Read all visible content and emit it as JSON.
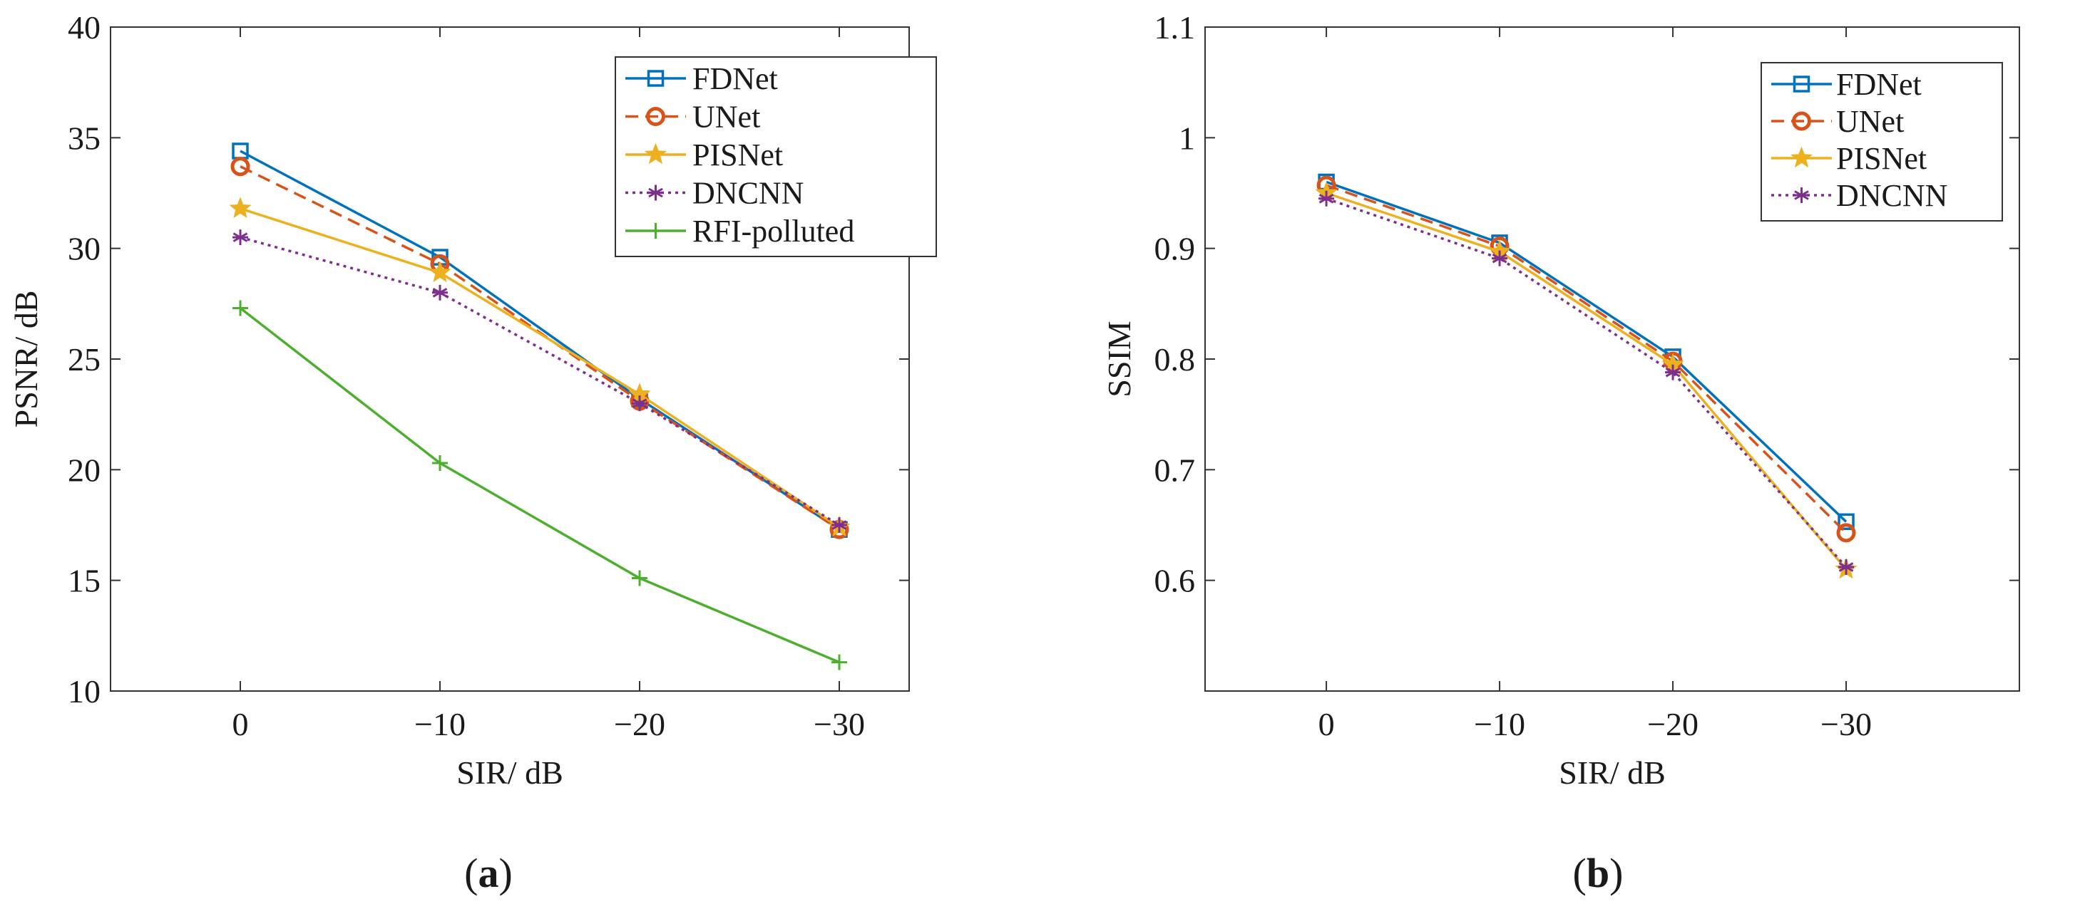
{
  "chart_data": [
    {
      "type": "line",
      "panel_label_open": "(",
      "panel_label_letter": "a",
      "panel_label_close": ")",
      "xlabel": "SIR/ dB",
      "ylabel": "PSNR/ dB",
      "categories": [
        "0",
        "−10",
        "−20",
        "−30"
      ],
      "x_positions": [
        0,
        1,
        2,
        3
      ],
      "xlim": [
        -0.65,
        3.35
      ],
      "ylim": [
        10,
        40
      ],
      "yticks": [
        10,
        15,
        20,
        25,
        30,
        35,
        40
      ],
      "legend_position": "top-right",
      "series": [
        {
          "name": "FDNet",
          "values": [
            34.4,
            29.6,
            23.2,
            17.3
          ],
          "color": "#0072BD",
          "dash": "",
          "marker": "square"
        },
        {
          "name": "UNet",
          "values": [
            33.7,
            29.3,
            23.1,
            17.3
          ],
          "color": "#D95319",
          "dash": "18,10",
          "marker": "circle"
        },
        {
          "name": "PISNet",
          "values": [
            31.8,
            28.9,
            23.4,
            17.4
          ],
          "color": "#EDB120",
          "dash": "",
          "marker": "star"
        },
        {
          "name": "DNCNN",
          "values": [
            30.5,
            28.0,
            23.0,
            17.5
          ],
          "color": "#7E2F8E",
          "dash": "4,6",
          "marker": "asterisk"
        },
        {
          "name": "RFI-polluted",
          "values": [
            27.3,
            20.3,
            15.1,
            11.3
          ],
          "color": "#4DAF2E",
          "dash": "",
          "marker": "plus"
        }
      ]
    },
    {
      "type": "line",
      "panel_label_open": "(",
      "panel_label_letter": "b",
      "panel_label_close": ")",
      "xlabel": "SIR/ dB",
      "ylabel": "SSIM",
      "categories": [
        "0",
        "−10",
        "−20",
        "−30"
      ],
      "x_positions": [
        0,
        1,
        2,
        3
      ],
      "xlim": [
        -0.7,
        4.0
      ],
      "ylim": [
        0.5,
        1.1
      ],
      "yticks": [
        0.6,
        0.7,
        0.8,
        0.9,
        1.0,
        1.1
      ],
      "ytick_labels": [
        "0.6",
        "0.7",
        "0.8",
        "0.9",
        "1",
        "1.1"
      ],
      "legend_position": "top-right",
      "series": [
        {
          "name": "FDNet",
          "values": [
            0.96,
            0.905,
            0.802,
            0.653
          ],
          "color": "#0072BD",
          "dash": "",
          "marker": "square"
        },
        {
          "name": "UNet",
          "values": [
            0.957,
            0.902,
            0.798,
            0.643
          ],
          "color": "#D95319",
          "dash": "18,10",
          "marker": "circle"
        },
        {
          "name": "PISNet",
          "values": [
            0.95,
            0.897,
            0.795,
            0.61
          ],
          "color": "#EDB120",
          "dash": "",
          "marker": "star"
        },
        {
          "name": "DNCNN",
          "values": [
            0.945,
            0.891,
            0.788,
            0.612
          ],
          "color": "#7E2F8E",
          "dash": "4,6",
          "marker": "asterisk"
        }
      ]
    }
  ]
}
